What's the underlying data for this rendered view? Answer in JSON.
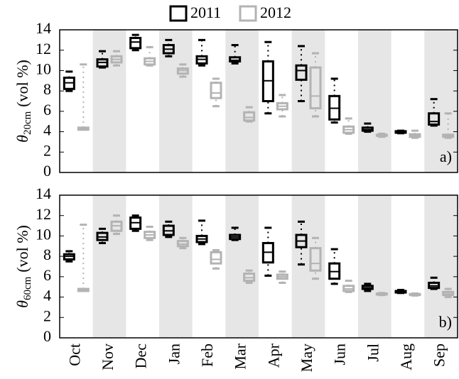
{
  "chart_data": [
    {
      "type": "box",
      "ylabel": {
        "symbol": "θ",
        "subscript": "20cm",
        "unit": "(vol %)"
      },
      "panel_label": "a)",
      "ylim": [
        0,
        14
      ],
      "yticks": [
        0,
        2,
        4,
        6,
        8,
        10,
        12,
        14
      ],
      "band_color": "#e6e6e6",
      "series": [
        {
          "name": "2011",
          "color": "#000000",
          "low": [
            8.0,
            10.3,
            12.0,
            11.4,
            10.5,
            10.7,
            5.8,
            7.0,
            4.9,
            4.0,
            3.85,
            4.6
          ],
          "q1": [
            8.2,
            10.4,
            12.2,
            11.7,
            10.7,
            10.9,
            7.0,
            9.1,
            5.2,
            4.1,
            3.9,
            4.7
          ],
          "median": [
            8.8,
            10.8,
            12.8,
            12.1,
            11.1,
            11.0,
            9.0,
            10.0,
            6.3,
            4.2,
            4.0,
            5.0
          ],
          "q3": [
            9.3,
            11.1,
            13.2,
            12.5,
            11.4,
            11.3,
            10.9,
            10.5,
            7.5,
            4.4,
            4.05,
            5.8
          ],
          "high": [
            9.9,
            11.9,
            13.5,
            13.0,
            13.0,
            12.5,
            12.8,
            12.4,
            9.2,
            4.8,
            4.1,
            7.2
          ]
        },
        {
          "name": "2012",
          "color": "#b3b3b3",
          "low": [
            4.2,
            10.5,
            10.5,
            9.4,
            6.5,
            5.0,
            5.5,
            5.5,
            3.8,
            3.5,
            3.4,
            3.4
          ],
          "q1": [
            4.2,
            10.8,
            10.6,
            9.7,
            7.3,
            5.1,
            6.2,
            6.3,
            3.9,
            3.6,
            3.5,
            3.5
          ],
          "median": [
            4.3,
            11.1,
            10.9,
            10.0,
            7.8,
            5.4,
            6.5,
            7.5,
            4.2,
            3.65,
            3.6,
            3.6
          ],
          "q3": [
            4.4,
            11.4,
            11.2,
            10.2,
            8.8,
            5.9,
            6.8,
            10.3,
            4.5,
            3.7,
            3.75,
            3.7
          ],
          "high": [
            10.6,
            11.9,
            12.3,
            10.6,
            9.2,
            6.4,
            7.6,
            11.7,
            5.3,
            3.8,
            4.1,
            5.8
          ]
        }
      ]
    },
    {
      "type": "box",
      "ylabel": {
        "symbol": "θ",
        "subscript": "60cm",
        "unit": "(vol %)"
      },
      "panel_label": "b)",
      "categories": [
        "Oct",
        "Nov",
        "Dec",
        "Jan",
        "Feb",
        "Mar",
        "Apr",
        "May",
        "Jun",
        "Jul",
        "Aug",
        "Sep"
      ],
      "ylim": [
        0,
        14
      ],
      "yticks": [
        0,
        2,
        4,
        6,
        8,
        10,
        12,
        14
      ],
      "band_color": "#e6e6e6",
      "series": [
        {
          "color": "#000000",
          "low": [
            7.5,
            9.3,
            10.5,
            9.9,
            9.2,
            9.6,
            6.1,
            7.2,
            5.3,
            4.6,
            4.4,
            4.8
          ],
          "q1": [
            7.7,
            9.6,
            10.7,
            10.1,
            9.4,
            9.7,
            7.4,
            8.9,
            5.8,
            4.8,
            4.45,
            4.9
          ],
          "median": [
            8.0,
            9.9,
            11.3,
            10.5,
            9.7,
            9.9,
            8.4,
            9.5,
            6.5,
            4.9,
            4.5,
            5.1
          ],
          "q3": [
            8.2,
            10.3,
            11.8,
            11.0,
            10.0,
            10.1,
            9.3,
            10.1,
            7.3,
            5.1,
            4.6,
            5.4
          ],
          "high": [
            8.5,
            10.7,
            12.0,
            11.4,
            11.5,
            10.8,
            10.8,
            11.4,
            8.7,
            5.3,
            4.7,
            5.9
          ]
        },
        {
          "color": "#b3b3b3",
          "low": [
            4.6,
            10.2,
            9.6,
            8.8,
            6.8,
            5.4,
            5.4,
            5.8,
            4.5,
            4.2,
            4.15,
            4.0
          ],
          "q1": [
            4.6,
            10.5,
            9.8,
            9.0,
            7.3,
            5.6,
            5.8,
            6.6,
            4.6,
            4.25,
            4.2,
            4.2
          ],
          "median": [
            4.7,
            11.0,
            10.1,
            9.2,
            7.7,
            5.9,
            6.0,
            7.3,
            4.8,
            4.3,
            4.25,
            4.3
          ],
          "q3": [
            4.8,
            11.4,
            10.4,
            9.5,
            8.4,
            6.3,
            6.2,
            8.8,
            5.1,
            4.35,
            4.3,
            4.5
          ],
          "high": [
            11.1,
            12.0,
            10.9,
            9.8,
            8.6,
            6.6,
            6.5,
            9.8,
            5.6,
            4.4,
            4.35,
            4.8
          ]
        }
      ]
    }
  ]
}
